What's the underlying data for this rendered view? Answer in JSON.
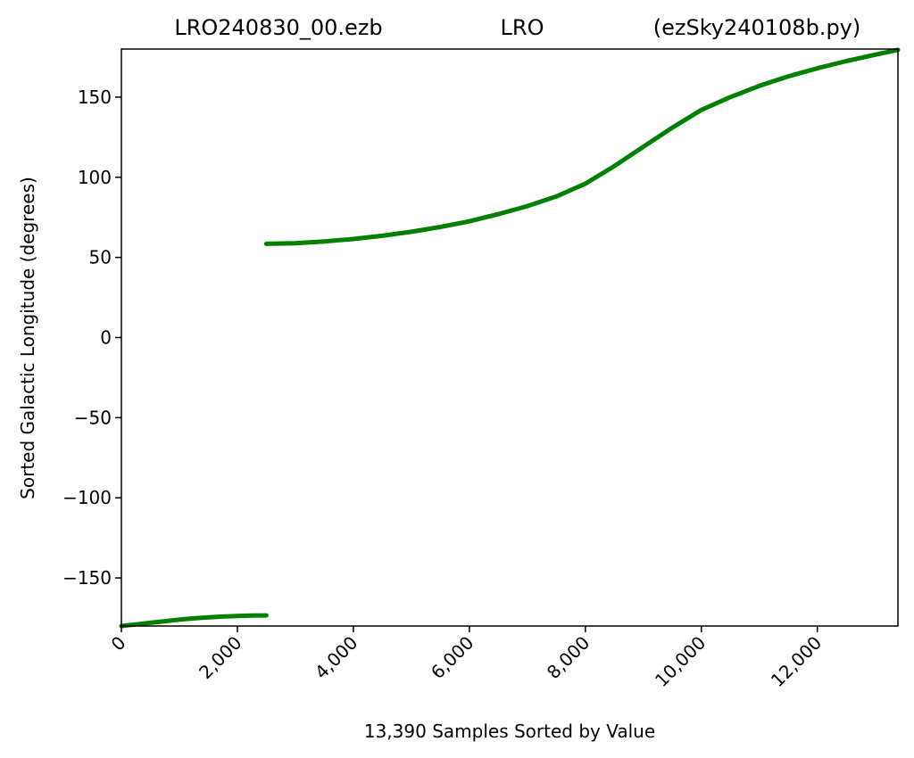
{
  "chart_data": {
    "type": "line",
    "title_parts": [
      "LRO240830_00.ezb",
      "LRO",
      "(ezSky240108b.py)"
    ],
    "xlabel": "13,390 Samples Sorted by Value",
    "ylabel": "Sorted Galactic Longitude (degrees)",
    "xlim": [
      0,
      13390
    ],
    "ylim": [
      -180,
      180
    ],
    "x_ticks": [
      0,
      2000,
      4000,
      6000,
      8000,
      10000,
      12000
    ],
    "x_tick_labels": [
      "0",
      "2,000",
      "4,000",
      "6,000",
      "8,000",
      "10,000",
      "12,000"
    ],
    "y_ticks": [
      -150,
      -100,
      -50,
      0,
      50,
      100,
      150
    ],
    "y_tick_labels": [
      "−150",
      "−100",
      "−50",
      "0",
      "50",
      "100",
      "150"
    ],
    "grid": false,
    "series_color": "#008000",
    "series": [
      {
        "segments": [
          [
            [
              0,
              -180
            ],
            [
              250,
              -179
            ],
            [
              500,
              -178
            ],
            [
              750,
              -177
            ],
            [
              1000,
              -176
            ],
            [
              1250,
              -175.2
            ],
            [
              1500,
              -174.6
            ],
            [
              1750,
              -174.1
            ],
            [
              2000,
              -173.7
            ],
            [
              2250,
              -173.5
            ],
            [
              2500,
              -173.4
            ]
          ],
          [
            [
              2500,
              58.5
            ],
            [
              3000,
              58.8
            ],
            [
              3500,
              60
            ],
            [
              4000,
              61.5
            ],
            [
              4500,
              63.5
            ],
            [
              5000,
              66
            ],
            [
              5500,
              69
            ],
            [
              6000,
              72.5
            ],
            [
              6500,
              77
            ],
            [
              7000,
              82
            ],
            [
              7500,
              88
            ],
            [
              8000,
              96
            ],
            [
              8500,
              107
            ],
            [
              9000,
              119
            ],
            [
              9500,
              131
            ],
            [
              10000,
              142
            ],
            [
              10500,
              150
            ],
            [
              11000,
              157
            ],
            [
              11500,
              163
            ],
            [
              12000,
              168
            ],
            [
              12500,
              172.5
            ],
            [
              13000,
              176.5
            ],
            [
              13390,
              179.5
            ]
          ]
        ]
      }
    ]
  }
}
